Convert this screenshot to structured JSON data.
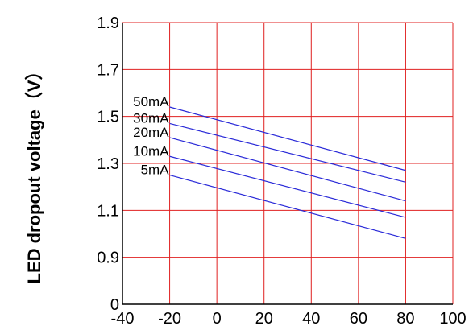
{
  "chart_data": {
    "type": "line",
    "ylabel": "LED dropout voltage（V）",
    "xlabel": "",
    "title": "",
    "x_ticks": [
      "-40",
      "-20",
      "0",
      "20",
      "40",
      "60",
      "80",
      "100"
    ],
    "y_ticks": [
      "0",
      "0.9",
      "1.1",
      "1.3",
      "1.5",
      "1.7",
      "1.9"
    ],
    "xlim": [
      -40,
      100
    ],
    "y_tick_values": [
      0,
      0.9,
      1.1,
      1.3,
      1.5,
      1.7,
      1.9
    ],
    "grid": true,
    "colors": {
      "grid": "#e02020",
      "series": "#2a2ad8",
      "axis": "#000000"
    },
    "series": [
      {
        "name": "50mA",
        "x": [
          -20,
          80
        ],
        "y": [
          1.54,
          1.27
        ]
      },
      {
        "name": "30mA",
        "x": [
          -20,
          80
        ],
        "y": [
          1.47,
          1.22
        ]
      },
      {
        "name": "20mA",
        "x": [
          -20,
          80
        ],
        "y": [
          1.41,
          1.14
        ]
      },
      {
        "name": "10mA",
        "x": [
          -20,
          80
        ],
        "y": [
          1.33,
          1.07
        ]
      },
      {
        "name": "5mA",
        "x": [
          -20,
          80
        ],
        "y": [
          1.25,
          0.98
        ]
      }
    ]
  }
}
